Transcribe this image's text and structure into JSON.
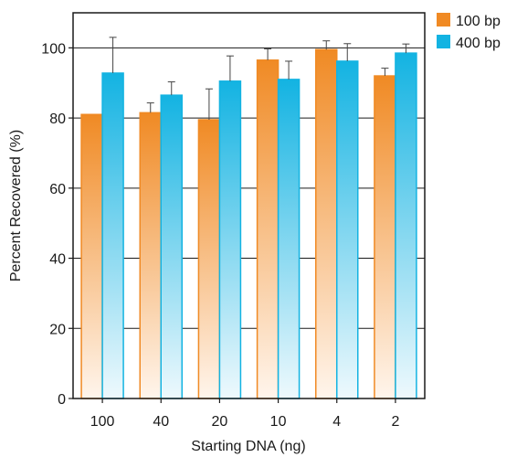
{
  "chart_data": {
    "type": "bar",
    "xlabel": "Starting DNA (ng)",
    "ylabel": "Percent Recovered (%)",
    "categories": [
      "100",
      "40",
      "20",
      "10",
      "4",
      "2"
    ],
    "ylim": [
      0,
      110
    ],
    "yticks": [
      "0",
      "20",
      "40",
      "60",
      "80",
      "100"
    ],
    "grid": true,
    "legend_position": "top-right-outside",
    "series": [
      {
        "name": "100 bp",
        "color": "#f08a24",
        "values": [
          81,
          81.5,
          79.5,
          96.5,
          99.5,
          92
        ],
        "error": [
          0,
          2.8,
          8.8,
          3.2,
          2.5,
          2.2
        ]
      },
      {
        "name": "400 bp",
        "color": "#13b3e2",
        "values": [
          92.8,
          86.5,
          90.5,
          91,
          96.2,
          98.5
        ],
        "error": [
          10.2,
          3.8,
          7.2,
          5.2,
          5,
          2.6
        ]
      }
    ]
  }
}
